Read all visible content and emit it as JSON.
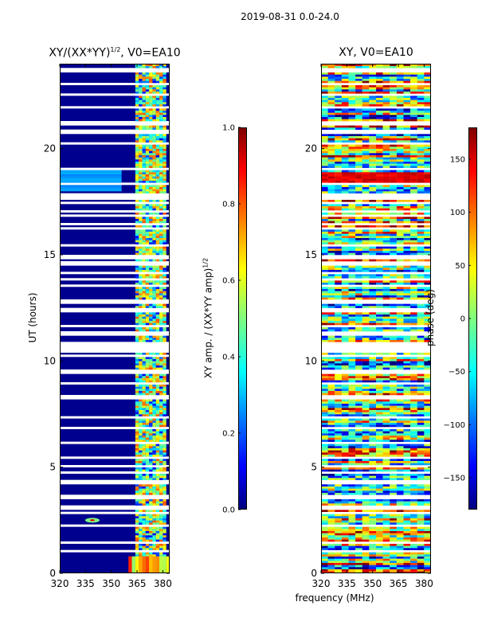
{
  "figure": {
    "suptitle": "2019-08-31 0.0-24.0",
    "xlabel": "frequency (MHz)"
  },
  "chart_data": [
    {
      "type": "heatmap",
      "title": "XY/(XX*YY)",
      "title_exponent": "1/2",
      "title_suffix": ", V0=EA10",
      "ylabel": "UT (hours)",
      "xlim": [
        320,
        384
      ],
      "ylim": [
        0,
        24
      ],
      "xticks": [
        "320",
        "335",
        "350",
        "365",
        "380"
      ],
      "yticks": [
        "0",
        "5",
        "10",
        "15",
        "20"
      ],
      "colorbar": {
        "label": "XY amp. / (XX*YY amp)",
        "label_exponent": "1/2",
        "range": [
          0.0,
          1.0
        ],
        "ticks": [
          "0.0",
          "0.2",
          "0.4",
          "0.6",
          "0.8",
          "1.0"
        ],
        "colormap": "jet"
      },
      "features": [
        {
          "name": "RFI band",
          "freq_range_mhz": [
            364,
            381
          ],
          "value_range": [
            0.4,
            0.8
          ]
        },
        {
          "name": "elevated patch",
          "time_range_h": [
            17.9,
            19.0
          ],
          "freq_range_mhz": [
            320,
            356
          ],
          "value": 0.25
        },
        {
          "name": "spike",
          "time_h": 2.5,
          "freq_mhz": 339,
          "value": 0.5
        }
      ]
    },
    {
      "type": "heatmap",
      "title": "XY, V0=EA10",
      "xlim": [
        320,
        384
      ],
      "ylim": [
        0,
        24
      ],
      "xticks": [
        "320",
        "335",
        "350",
        "365",
        "380"
      ],
      "yticks": [
        "0",
        "5",
        "10",
        "15",
        "20"
      ],
      "colorbar": {
        "label": "phase (deg)",
        "range": [
          -180,
          180
        ],
        "ticks": [
          "−150",
          "−100",
          "−50",
          "0",
          "50",
          "100",
          "150"
        ],
        "colormap": "jet"
      },
      "features": [
        {
          "name": "high-phase band",
          "time_range_h": [
            18.2,
            18.8
          ],
          "value": 150
        },
        {
          "name": "mixed phase structure",
          "time_range_h": [
            0,
            24
          ],
          "value_range": [
            -180,
            180
          ]
        }
      ]
    }
  ]
}
